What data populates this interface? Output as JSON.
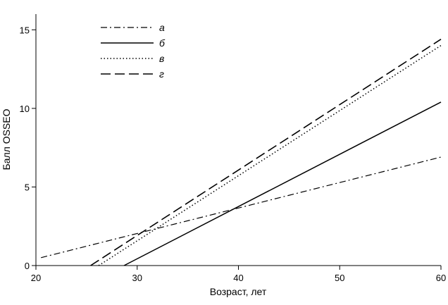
{
  "chart_data": {
    "type": "line",
    "title": "",
    "xlabel": "Возраст, лет",
    "ylabel": "Балл OSSEO",
    "xlim": [
      20,
      60
    ],
    "ylim": [
      0,
      16
    ],
    "x_ticks": [
      "20",
      "30",
      "40",
      "50",
      "60"
    ],
    "y_ticks": [
      "0",
      "5",
      "10",
      "15"
    ],
    "grid": false,
    "legend_position": "top-left",
    "series": [
      {
        "name": "а",
        "style": "dash-dot",
        "color": "#000000",
        "x": [
          20.5,
          60
        ],
        "y": [
          0.5,
          6.9
        ]
      },
      {
        "name": "б",
        "style": "solid",
        "color": "#000000",
        "x": [
          28.7,
          60
        ],
        "y": [
          0,
          10.4
        ]
      },
      {
        "name": "в",
        "style": "dotted",
        "color": "#000000",
        "x": [
          26.2,
          60
        ],
        "y": [
          0,
          14.0
        ]
      },
      {
        "name": "г",
        "style": "dashed",
        "color": "#000000",
        "x": [
          25.4,
          60
        ],
        "y": [
          0,
          14.4
        ]
      }
    ]
  }
}
